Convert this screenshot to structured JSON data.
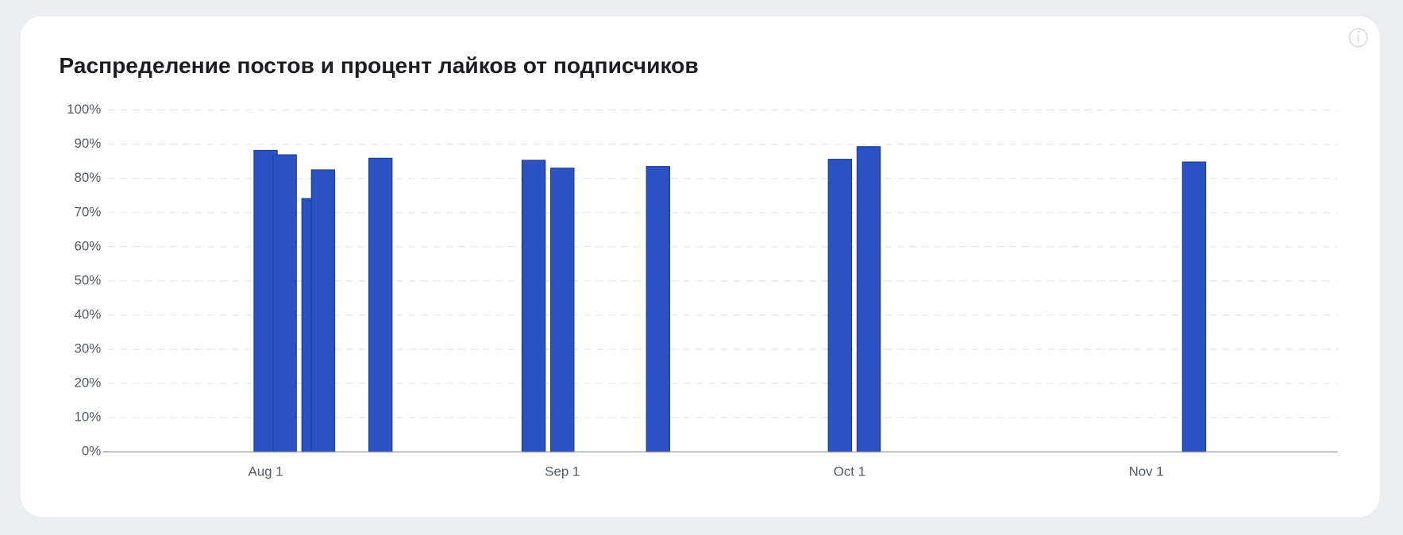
{
  "chart_data": {
    "type": "bar",
    "title": "Распределение постов и процент лайков от подписчиков",
    "x": [
      "Aug 1",
      "Aug 3",
      "Aug 6",
      "Aug 7",
      "Aug 13",
      "Aug 29",
      "Sep 1",
      "Sep 11",
      "Sep 30",
      "Oct 3",
      "Nov 6"
    ],
    "values": [
      88.2,
      86.9,
      74.1,
      82.5,
      85.9,
      85.3,
      83.0,
      83.5,
      85.6,
      89.3,
      84.8
    ],
    "color": "#2a52c2",
    "xlim": [
      "Jul 15",
      "Nov 21"
    ],
    "xticks": [
      "Aug 1",
      "Sep 1",
      "Oct 1",
      "Nov 1"
    ],
    "ylim": [
      0,
      100
    ],
    "yticks": [
      {
        "value": 0,
        "label": "0%"
      },
      {
        "value": 10,
        "label": "10%"
      },
      {
        "value": 20,
        "label": "20%"
      },
      {
        "value": 30,
        "label": "30%"
      },
      {
        "value": 40,
        "label": "40%"
      },
      {
        "value": 50,
        "label": "50%"
      },
      {
        "value": 60,
        "label": "60%"
      },
      {
        "value": 70,
        "label": "70%"
      },
      {
        "value": 80,
        "label": "80%"
      },
      {
        "value": 90,
        "label": "90%"
      },
      {
        "value": 100,
        "label": "100%"
      }
    ],
    "grid": true
  }
}
